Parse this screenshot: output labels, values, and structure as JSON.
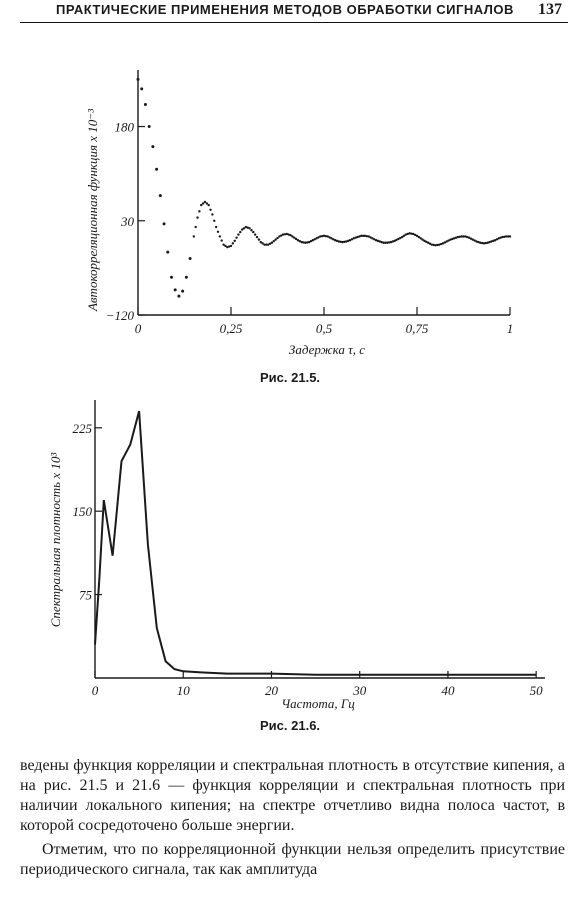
{
  "header": {
    "title": "ПРАКТИЧЕСКИЕ ПРИМЕНЕНИЯ МЕТОДОВ ОБРАБОТКИ СИГНАЛОВ",
    "page_number": "137"
  },
  "figures": {
    "fig1_caption": "Рис. 21.5.",
    "fig2_caption": "Рис. 21.6."
  },
  "chart_data": [
    {
      "type": "scatter",
      "style": "dotted line",
      "title": "",
      "xlabel": "Задержка τ, с",
      "ylabel": "Автокорреляционная функция x 10⁻³",
      "xlim": [
        0,
        1
      ],
      "ylim": [
        -120,
        270
      ],
      "x_ticks": [
        0,
        0.25,
        0.5,
        0.75,
        1
      ],
      "x_tick_labels": [
        "0",
        "0,25",
        "0,5",
        "0,75",
        "1"
      ],
      "y_ticks": [
        -120,
        30,
        180
      ],
      "y_tick_labels": [
        "−120",
        "30",
        "180"
      ],
      "series": [
        {
          "x": [
            0,
            0.01,
            0.02,
            0.03,
            0.04,
            0.05,
            0.06,
            0.07,
            0.08,
            0.09,
            0.1,
            0.11,
            0.12,
            0.13,
            0.14,
            0.15,
            0.16,
            0.17,
            0.18,
            0.19,
            0.2,
            0.21,
            0.22,
            0.23,
            0.24,
            0.25,
            0.26,
            0.27,
            0.28,
            0.29,
            0.3,
            0.31,
            0.32,
            0.33,
            0.34,
            0.35,
            0.36,
            0.37,
            0.38,
            0.39,
            0.4,
            0.41,
            0.42,
            0.43,
            0.44,
            0.45,
            0.46,
            0.47,
            0.48,
            0.49,
            0.5,
            0.51,
            0.52,
            0.53,
            0.54,
            0.55,
            0.56,
            0.57,
            0.58,
            0.59,
            0.6,
            0.61,
            0.62,
            0.63,
            0.64,
            0.65,
            0.66,
            0.67,
            0.68,
            0.69,
            0.7,
            0.71,
            0.72,
            0.73,
            0.74,
            0.75,
            0.76,
            0.77,
            0.78,
            0.79,
            0.8,
            0.81,
            0.82,
            0.83,
            0.84,
            0.85,
            0.86,
            0.87,
            0.88,
            0.89,
            0.9,
            0.91,
            0.92,
            0.93,
            0.94,
            0.95,
            0.96,
            0.97,
            0.98,
            0.99,
            1.0
          ],
          "y": [
            255,
            240,
            215,
            180,
            148,
            112,
            70,
            25,
            -20,
            -60,
            -80,
            -90,
            -82,
            -60,
            -30,
            5,
            35,
            55,
            60,
            55,
            40,
            20,
            5,
            -8,
            -12,
            -10,
            -2,
            8,
            16,
            20,
            18,
            12,
            4,
            -4,
            -8,
            -8,
            -5,
            0,
            5,
            8,
            9,
            7,
            3,
            -1,
            -4,
            -5,
            -4,
            -1,
            2,
            5,
            6,
            5,
            2,
            -1,
            -3,
            -4,
            -3,
            -1,
            2,
            4,
            6,
            6,
            5,
            2,
            -1,
            -3,
            -5,
            -5,
            -4,
            -2,
            1,
            4,
            8,
            10,
            9,
            6,
            2,
            -2,
            -5,
            -8,
            -9,
            -8,
            -6,
            -3,
            0,
            2,
            4,
            5,
            5,
            3,
            0,
            -3,
            -5,
            -6,
            -5,
            -3,
            -1,
            2,
            4,
            5,
            5
          ]
        }
      ]
    },
    {
      "type": "line",
      "title": "",
      "xlabel": "Частота, Гц",
      "ylabel": "Спектральная плотность x 10³",
      "xlim": [
        0,
        51
      ],
      "ylim": [
        0,
        250
      ],
      "x_ticks": [
        0,
        10,
        20,
        30,
        40,
        50
      ],
      "x_tick_labels": [
        "0",
        "10",
        "20",
        "30",
        "40",
        "50"
      ],
      "y_ticks": [
        75,
        150,
        225
      ],
      "y_tick_labels": [
        "75",
        "150",
        "225"
      ],
      "series": [
        {
          "x": [
            0,
            0.5,
            1,
            2,
            3,
            4,
            5,
            6,
            7,
            8,
            9,
            10,
            12,
            15,
            20,
            25,
            30,
            35,
            40,
            45,
            50
          ],
          "y": [
            30,
            90,
            160,
            110,
            195,
            210,
            240,
            120,
            45,
            15,
            8,
            6,
            5,
            4,
            4,
            3,
            3,
            3,
            3,
            3,
            3
          ]
        }
      ]
    }
  ],
  "body": {
    "para1": "ведены функция корреляции и спектральная плотность в отсутствие кипения, а на рис. 21.5 и 21.6 — функция корреляции и спектральная плотность при наличии локального кипения; на спектре отчетливо видна полоса частот, в которой сосредоточено больше энергии.",
    "para2": "Отметим, что по корреляционной функции нельзя определить присутствие периодического сигнала, так как амплитуда"
  }
}
